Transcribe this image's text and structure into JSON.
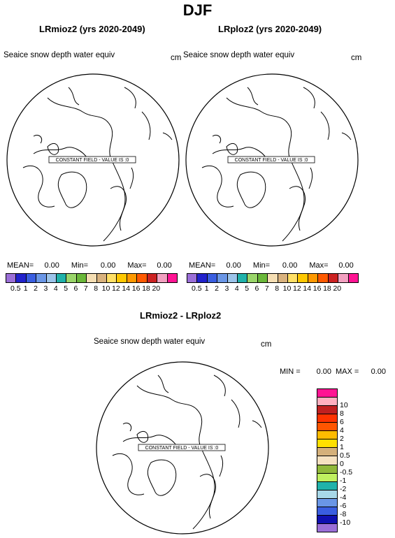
{
  "title": "DJF",
  "panels": [
    {
      "model_label": "LRmioz2 (yrs 2020-2049)",
      "field_label": "Seaice snow depth water equiv",
      "units": "cm",
      "constant_label": "CONSTANT FIELD - VALUE IS :0",
      "stats": {
        "mean_label": "MEAN=",
        "mean": "0.00",
        "min_label": "Min=",
        "min": "0.00",
        "max_label": "Max=",
        "max": "0.00"
      }
    },
    {
      "model_label": "LRploz2 (yrs 2020-2049)",
      "field_label": "Seaice snow depth water equiv",
      "units": "cm",
      "constant_label": "CONSTANT FIELD - VALUE IS :0",
      "stats": {
        "mean_label": "MEAN=",
        "mean": "0.00",
        "min_label": "Min=",
        "min": "0.00",
        "max_label": "Max=",
        "max": "0.00"
      }
    },
    {
      "model_label": "LRmioz2 - LRploz2",
      "field_label": "Seaice snow depth water equiv",
      "units": "cm",
      "constant_label": "CONSTANT FIELD - VALUE IS :0",
      "stats": {
        "min_label": "MIN =",
        "min": "0.00",
        "max_label": "MAX =",
        "max": "0.00"
      }
    }
  ],
  "colorbar_top": {
    "colors": [
      "#9b6fd8",
      "#2222cc",
      "#3a5ee0",
      "#6a96e6",
      "#9cc4ea",
      "#20b2aa",
      "#9ad66a",
      "#6bb83a",
      "#f5deb3",
      "#d9b27e",
      "#ffe066",
      "#ffc800",
      "#ff9900",
      "#ff5a00",
      "#cc2222",
      "#f2a0c0",
      "#ff1493"
    ],
    "labels": [
      "0.5",
      "1",
      "2",
      "3",
      "4",
      "5",
      "6",
      "7",
      "8",
      "10",
      "12",
      "14",
      "16",
      "18",
      "20"
    ]
  },
  "colorbar_diff": {
    "colors": [
      "#9b6fd8",
      "#1010b0",
      "#3a5ee0",
      "#6a96e6",
      "#a8d8e8",
      "#20b2aa",
      "#c0f060",
      "#90b83a",
      "#f5e1c0",
      "#d4b07a",
      "#ffe000",
      "#ffbb00",
      "#ff5500",
      "#ff3300",
      "#c02020",
      "#ffb0c0",
      "#ff1493"
    ],
    "labels": [
      "-10",
      "-8",
      "-6",
      "-4",
      "-2",
      "-1",
      "-0.5",
      "0",
      "0.5",
      "1",
      "2",
      "4",
      "6",
      "8",
      "10"
    ]
  }
}
